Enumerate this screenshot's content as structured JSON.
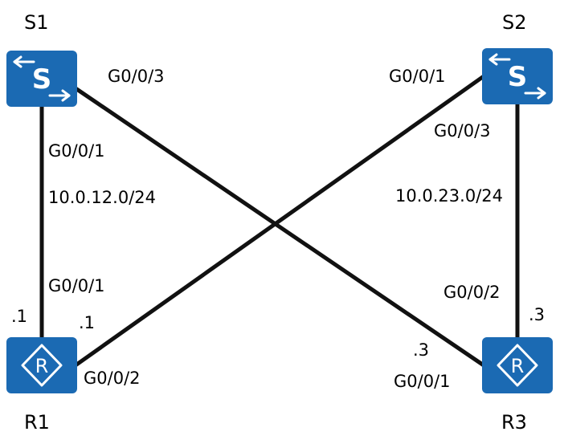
{
  "devices": {
    "s1": {
      "name": "S1",
      "icon": "switch-icon"
    },
    "s2": {
      "name": "S2",
      "icon": "switch-icon"
    },
    "r1": {
      "name": "R1",
      "icon": "router-icon"
    },
    "r3": {
      "name": "R3",
      "icon": "router-icon"
    }
  },
  "links": {
    "s1_r1": {
      "s1_port": "G0/0/1",
      "r1_port": "G0/0/1",
      "subnet": "10.0.12.0/24",
      "r1_host": ".1"
    },
    "s1_r3": {
      "s1_port": "G0/0/3",
      "r3_port": "G0/0/1",
      "r3_host": ".3"
    },
    "s2_r1": {
      "s2_port": "G0/0/1",
      "r1_port": "G0/0/2",
      "r1_host": ".1"
    },
    "s2_r3": {
      "s2_port": "G0/0/3",
      "r3_port": "G0/0/2",
      "subnet": "10.0.23.0/24",
      "r3_host": ".3"
    }
  },
  "colors": {
    "device": "#1b6ab3",
    "link": "#111111",
    "glyph": "#ffffff"
  }
}
